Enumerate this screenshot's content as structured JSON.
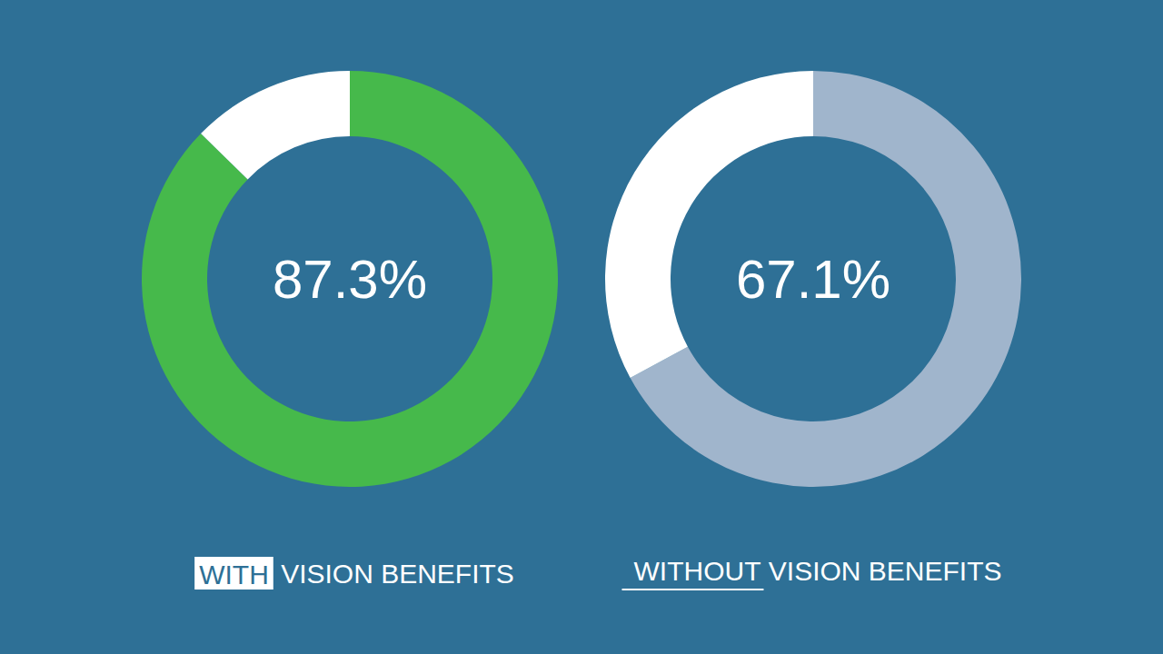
{
  "chart_data": [
    {
      "type": "pie",
      "title": "WITH VISION BENEFITS",
      "values": [
        87.3,
        12.7
      ],
      "value_labels": [
        "87.3%",
        null
      ],
      "colors": [
        "#46b94b",
        "#ffffff"
      ]
    },
    {
      "type": "pie",
      "title": "WITHOUT VISION BENEFITS",
      "values": [
        67.1,
        32.9
      ],
      "value_labels": [
        "67.1%",
        null
      ],
      "colors": [
        "#a0b5cc",
        "#ffffff"
      ]
    }
  ]
}
